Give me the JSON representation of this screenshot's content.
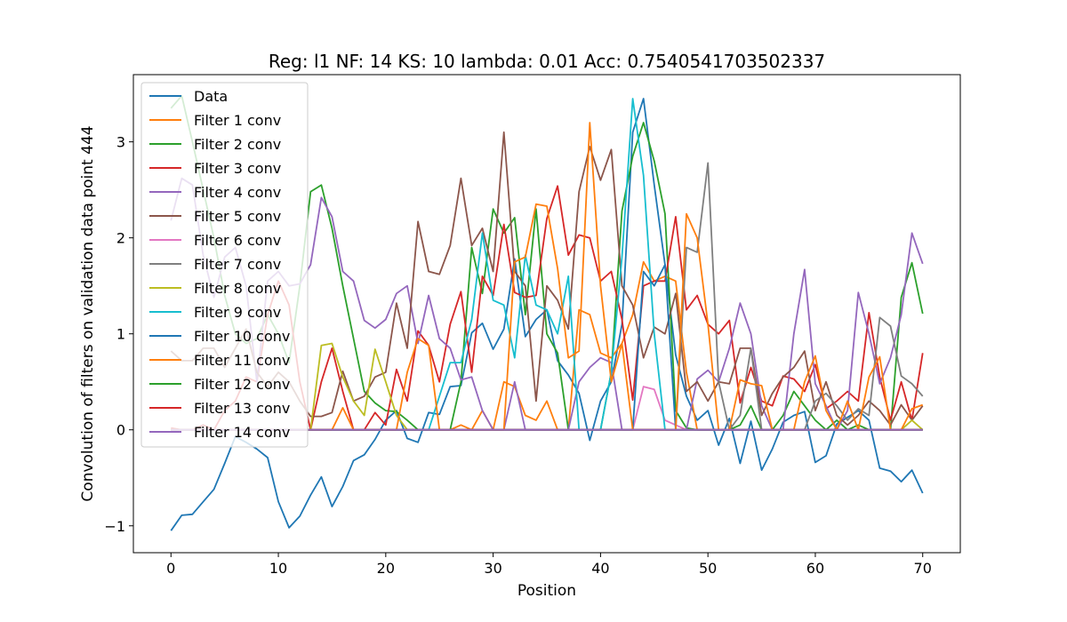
{
  "chart_data": {
    "type": "line",
    "title": "Reg: l1  NF: 14  KS: 10  lambda: 0.01 Acc: 0.7540541703502337",
    "xlabel": "Position",
    "ylabel": "Convolution of filters on validation data point 444",
    "xlim": [
      -3.5,
      73.5
    ],
    "ylim": [
      -1.28,
      3.7
    ],
    "x_ticks": [
      0,
      10,
      20,
      30,
      40,
      50,
      60,
      70
    ],
    "y_ticks": [
      -1,
      0,
      1,
      2,
      3
    ],
    "y_tick_labels": [
      "−1",
      "0",
      "1",
      "2",
      "3"
    ],
    "legend_position": "upper left",
    "grid": false,
    "x": [
      0,
      1,
      2,
      3,
      4,
      5,
      6,
      7,
      8,
      9,
      10,
      11,
      12,
      13,
      14,
      15,
      16,
      17,
      18,
      19,
      20,
      21,
      22,
      23,
      24,
      25,
      26,
      27,
      28,
      29,
      30,
      31,
      32,
      33,
      34,
      35,
      36,
      37,
      38,
      39,
      40,
      41,
      42,
      43,
      44,
      45,
      46,
      47,
      48,
      49,
      50,
      51,
      52,
      53,
      54,
      55,
      56,
      57,
      58,
      59,
      60,
      61,
      62,
      63,
      64,
      65,
      66,
      67,
      68,
      69,
      70
    ],
    "series": [
      {
        "name": "Data",
        "color": "#1f77b4",
        "values": [
          -1.05,
          -0.89,
          -0.88,
          -0.75,
          -0.62,
          -0.35,
          -0.07,
          -0.13,
          -0.2,
          -0.29,
          -0.75,
          -1.02,
          -0.9,
          -0.68,
          -0.49,
          -0.8,
          -0.59,
          -0.32,
          -0.26,
          -0.1,
          0.1,
          0.2,
          -0.09,
          -0.13,
          0.18,
          0.16,
          0.45,
          0.46,
          1.01,
          1.11,
          0.84,
          1.05,
          1.78,
          0.97,
          1.15,
          1.25,
          0.72,
          0.57,
          0.38,
          -0.11,
          0.3,
          0.5,
          1.1,
          3.1,
          3.45,
          2.55,
          1.72,
          0.78,
          0.35,
          0.1,
          0.2,
          -0.16,
          0.12,
          -0.35,
          0.09,
          -0.42,
          -0.2,
          0.08,
          0.15,
          0.19,
          -0.34,
          -0.27,
          0.06,
          0.13,
          0.2,
          0.1,
          -0.4,
          -0.43,
          -0.54,
          -0.42,
          -0.66
        ]
      },
      {
        "name": "Filter 1 conv",
        "color": "#ff7f0e",
        "values": [
          0,
          0,
          0,
          0,
          0,
          0,
          0,
          0,
          0,
          0,
          0,
          0,
          0,
          0,
          0,
          0,
          0,
          0,
          0,
          0,
          0,
          0,
          0,
          0,
          0,
          0,
          0,
          0.05,
          0,
          0.2,
          0,
          0.5,
          0.45,
          0.15,
          0.1,
          0.3,
          0,
          0,
          1.25,
          1.2,
          0.8,
          0.75,
          0.9,
          1.2,
          1.75,
          1.55,
          1.6,
          1.55,
          0.6,
          0,
          0,
          0,
          0,
          0,
          0,
          0,
          0,
          0,
          0,
          0,
          0,
          0,
          0,
          0,
          0,
          0,
          0,
          0,
          0,
          0,
          0
        ]
      },
      {
        "name": "Filter 2 conv",
        "color": "#2ca02c",
        "values": [
          3.35,
          3.48,
          3.0,
          2.5,
          2.0,
          1.4,
          1.0,
          0.9,
          0.95,
          1.2,
          1.0,
          0.7,
          1.5,
          2.48,
          2.55,
          2.1,
          1.5,
          0.95,
          0.4,
          0.28,
          0.2,
          0.19,
          0.1,
          0,
          0,
          0,
          0,
          0.5,
          1.9,
          1.42,
          2.3,
          2.05,
          2.21,
          1.2,
          2.3,
          1.0,
          0.8,
          0,
          0,
          0,
          0,
          0.6,
          2.28,
          2.85,
          3.2,
          2.8,
          2.25,
          0.2,
          0.02,
          0,
          0,
          0,
          0,
          0.05,
          0.25,
          0,
          0,
          0.15,
          0.4,
          0.25,
          0.1,
          0,
          0.1,
          0,
          0.05,
          0,
          0,
          0,
          1.38,
          1.74,
          1.21
        ]
      },
      {
        "name": "Filter 3 conv",
        "color": "#d62728",
        "values": [
          0.02,
          0,
          0,
          0.05,
          0,
          0.2,
          0.3,
          0.55,
          0.5,
          1.2,
          1.55,
          1.3,
          0.5,
          0,
          0.5,
          0.85,
          0.4,
          0,
          0,
          0.18,
          0.05,
          0.63,
          0.3,
          1.03,
          0.88,
          0.5,
          1.1,
          1.44,
          0.6,
          1.6,
          1.4,
          2.14,
          1.43,
          1.38,
          1.4,
          2.2,
          2.54,
          1.82,
          2.03,
          2.0,
          1.55,
          1.65,
          1.15,
          0.31,
          1.5,
          1.55,
          1.55,
          2.22,
          1.25,
          1.4,
          1.1,
          1.0,
          1.14,
          0.28,
          0.65,
          0.3,
          0.25,
          0.56,
          0.53,
          0.4,
          0.68,
          0.22,
          0.3,
          0.4,
          0.3,
          1.22,
          0.55,
          0.1,
          0.5,
          0.1,
          0.8
        ]
      },
      {
        "name": "Filter 4 conv",
        "color": "#9467bd",
        "values": [
          2.18,
          2.62,
          2.55,
          1.82,
          1.38,
          1.8,
          1.9,
          1.5,
          0.5,
          1.55,
          1.65,
          1.5,
          1.52,
          1.72,
          2.42,
          2.22,
          1.65,
          1.55,
          1.14,
          1.06,
          1.15,
          1.42,
          1.5,
          0.9,
          1.4,
          0.95,
          0.85,
          0.52,
          0.55,
          0.2,
          0,
          0,
          0.5,
          0,
          0,
          0,
          0,
          0,
          0.5,
          0.65,
          0.75,
          0.7,
          0,
          0,
          0,
          0,
          0,
          0,
          0,
          0.53,
          0.62,
          0.5,
          0.85,
          1.32,
          1.0,
          0.25,
          0,
          0,
          1.0,
          1.67,
          0.48,
          0.25,
          0,
          0.2,
          1.43,
          1.0,
          0.48,
          0.75,
          1.2,
          2.05,
          1.73
        ]
      },
      {
        "name": "Filter 5 conv",
        "color": "#8c564b",
        "values": [
          0.82,
          0.72,
          0.72,
          0.85,
          0.85,
          0.65,
          0.85,
          1.05,
          0.6,
          0.45,
          0.6,
          0.5,
          0.3,
          0.14,
          0.14,
          0.18,
          0.61,
          0.3,
          0.35,
          0.55,
          0.6,
          1.32,
          0.85,
          2.17,
          1.65,
          1.62,
          1.92,
          2.62,
          1.92,
          2.1,
          1.65,
          3.1,
          1.65,
          1.5,
          0.3,
          1.5,
          1.35,
          1.05,
          2.48,
          2.95,
          2.6,
          2.92,
          1.5,
          1.3,
          0.75,
          1.07,
          1.0,
          1.42,
          0.4,
          0.5,
          0.3,
          0.5,
          0.48,
          0.85,
          0.85,
          0.15,
          0.38,
          0.55,
          0.65,
          0.82,
          0.2,
          0.5,
          0.15,
          0.05,
          0.15,
          0.3,
          0.2,
          0.05,
          0.26,
          0.1,
          0.25
        ]
      },
      {
        "name": "Filter 6 conv",
        "color": "#e377c2",
        "values": [
          0,
          0,
          0,
          0,
          0,
          0,
          0,
          0,
          0,
          0,
          0,
          0,
          0,
          0,
          0,
          0,
          0,
          0,
          0,
          0,
          0,
          0,
          0,
          0,
          0,
          0,
          0,
          0,
          0,
          0,
          0,
          0,
          0,
          0,
          0,
          0,
          0,
          0,
          0,
          0,
          0,
          0,
          0,
          0,
          0.45,
          0.42,
          0.1,
          0.05,
          0,
          0,
          0,
          0,
          0,
          0,
          0,
          0,
          0,
          0,
          0,
          0,
          0,
          0,
          0,
          0,
          0,
          0,
          0,
          0,
          0,
          0,
          0
        ]
      },
      {
        "name": "Filter 7 conv",
        "color": "#7f7f7f",
        "values": [
          0,
          0,
          0,
          0,
          0,
          0,
          0,
          0,
          0,
          0,
          0,
          0,
          0,
          0,
          0,
          0,
          0,
          0,
          0,
          0,
          0,
          0,
          0,
          0,
          0,
          0,
          0,
          0,
          0,
          0,
          0,
          0,
          0,
          0,
          0,
          0,
          0,
          0,
          0,
          0,
          0,
          0,
          0,
          0,
          0,
          0,
          0,
          0,
          1.9,
          1.85,
          2.78,
          0.5,
          0,
          0.15,
          0.85,
          0,
          0,
          0,
          0,
          0,
          0.3,
          0.38,
          0.25,
          0.1,
          0.22,
          0.15,
          1.17,
          1.08,
          0.56,
          0.48,
          0.35
        ]
      },
      {
        "name": "Filter 8 conv",
        "color": "#bcbd22",
        "values": [
          0,
          0,
          0,
          0,
          0,
          0,
          0,
          0,
          0,
          0,
          0,
          0,
          0,
          0,
          0.88,
          0.9,
          0.55,
          0.3,
          0.15,
          0.84,
          0.5,
          0.15,
          0,
          0,
          0,
          0,
          0,
          0,
          0,
          0,
          0,
          0,
          0,
          0,
          0,
          0,
          0,
          0,
          0,
          0,
          0,
          0,
          0,
          0,
          0,
          0,
          0,
          0,
          0,
          0,
          0,
          0,
          0,
          0,
          0,
          0,
          0,
          0,
          0,
          0,
          0,
          0,
          0,
          0,
          0,
          0,
          0,
          0,
          0,
          0.1,
          0
        ]
      },
      {
        "name": "Filter 9 conv",
        "color": "#17becf",
        "values": [
          0,
          0,
          0,
          0,
          0,
          0,
          0,
          0,
          0,
          0,
          0,
          0,
          0,
          0,
          0,
          0,
          0,
          0,
          0,
          0,
          0,
          0,
          0,
          0,
          0,
          0.35,
          0.7,
          0.7,
          1.15,
          2.05,
          1.35,
          1.3,
          0.75,
          1.82,
          1.3,
          1.25,
          1.0,
          1.6,
          0,
          0,
          0,
          0.6,
          1.8,
          3.45,
          2.65,
          1.0,
          0,
          0,
          0,
          0,
          0,
          0,
          0,
          0,
          0,
          0,
          0,
          0,
          0,
          0,
          0,
          0,
          0,
          0,
          0,
          0,
          0,
          0,
          0,
          0,
          0
        ]
      },
      {
        "name": "Filter 10 conv",
        "color": "#1f77b4",
        "values": [
          0,
          0,
          0,
          0,
          0,
          0,
          0,
          0,
          0,
          0,
          0,
          0,
          0,
          0,
          0,
          0,
          0,
          0,
          0,
          0,
          0,
          0,
          0,
          0,
          0,
          0,
          0,
          0,
          0,
          0,
          0,
          0,
          0,
          0,
          0,
          0,
          0,
          0,
          0,
          0,
          0,
          0,
          0,
          0,
          1.65,
          1.5,
          1.72,
          0,
          0,
          0,
          0,
          0,
          0,
          0,
          0,
          0,
          0,
          0,
          0,
          0,
          0,
          0,
          0,
          0,
          0,
          0,
          0,
          0,
          0,
          0,
          0
        ]
      },
      {
        "name": "Filter 11 conv",
        "color": "#ff7f0e",
        "values": [
          0,
          0,
          0,
          0,
          0,
          0,
          0,
          0,
          0,
          0,
          0,
          0,
          0,
          0,
          0,
          0,
          0.23,
          0,
          0,
          0,
          0,
          0,
          0.6,
          0.95,
          0.88,
          0,
          0,
          0,
          0,
          0,
          0,
          0,
          1.75,
          1.8,
          2.35,
          2.33,
          1.68,
          0.75,
          0.82,
          3.2,
          1.5,
          0.5,
          0.9,
          0,
          0,
          0,
          0,
          0,
          2.25,
          2.0,
          1.1,
          0,
          0,
          0.52,
          0.48,
          0.46,
          0,
          0,
          0,
          0.5,
          0.77,
          0.2,
          0,
          0.3,
          0,
          0.55,
          0.76,
          0,
          0,
          0.22,
          0.26
        ]
      },
      {
        "name": "Filter 12 conv",
        "color": "#2ca02c",
        "values": [
          0,
          0,
          0,
          0,
          0,
          0,
          0,
          0,
          0,
          0,
          0,
          0,
          0,
          0,
          0,
          0,
          0,
          0,
          0,
          0,
          0,
          0,
          0,
          0,
          0,
          0,
          0,
          0,
          0,
          0,
          0,
          0,
          0,
          0,
          0,
          0,
          0,
          0,
          0,
          0,
          0,
          0,
          0,
          0,
          0,
          0,
          0,
          0,
          0,
          0,
          0,
          0,
          0,
          0,
          0,
          0,
          0,
          0,
          0,
          0,
          0,
          0,
          0,
          0,
          0,
          0,
          0,
          0,
          0,
          0,
          0
        ]
      },
      {
        "name": "Filter 13 conv",
        "color": "#d62728",
        "values": [
          0,
          0,
          0,
          0,
          0,
          0,
          0,
          0,
          0,
          0,
          0,
          0,
          0,
          0,
          0,
          0,
          0,
          0,
          0,
          0,
          0,
          0,
          0,
          0,
          0,
          0,
          0,
          0,
          0,
          0,
          0,
          0,
          0,
          0,
          0,
          0,
          0,
          0,
          0,
          0,
          0,
          0,
          0,
          0,
          0,
          0,
          0,
          0,
          0,
          0,
          0,
          0,
          0,
          0,
          0,
          0,
          0,
          0,
          0,
          0,
          0,
          0,
          0,
          0,
          0,
          0,
          0,
          0,
          0,
          0,
          0
        ]
      },
      {
        "name": "Filter 14 conv",
        "color": "#9467bd",
        "values": [
          0,
          0,
          0,
          0,
          0,
          0,
          0,
          0,
          0,
          0,
          0,
          0,
          0,
          0,
          0,
          0,
          0,
          0,
          0,
          0,
          0,
          0,
          0,
          0,
          0,
          0,
          0,
          0,
          0,
          0,
          0,
          0,
          0,
          0,
          0,
          0,
          0,
          0,
          0,
          0,
          0,
          0,
          0,
          0,
          0,
          0,
          0,
          0,
          0,
          0,
          0,
          0,
          0,
          0,
          0,
          0,
          0,
          0,
          0,
          0,
          0,
          0,
          0,
          0,
          0,
          0,
          0,
          0,
          0,
          0,
          0
        ]
      }
    ]
  }
}
